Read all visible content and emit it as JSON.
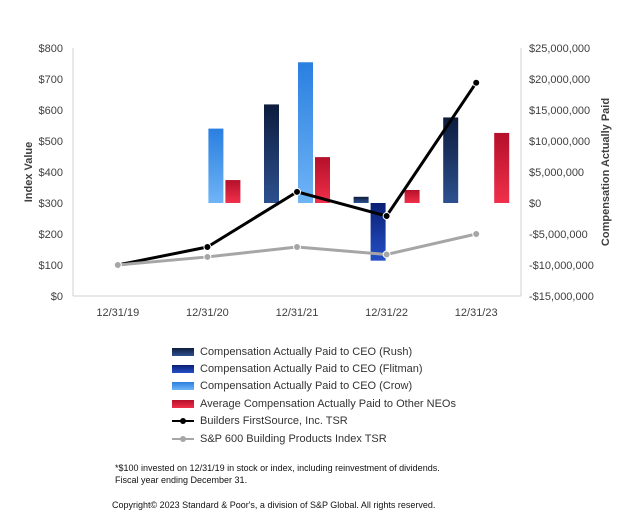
{
  "chart_data": {
    "type": "bar",
    "categories": [
      "12/31/19",
      "12/31/20",
      "12/31/21",
      "12/31/22",
      "12/31/23"
    ],
    "left_axis": {
      "title": "Index Value",
      "ylim": [
        0,
        800
      ],
      "ticks": [
        0,
        100,
        200,
        300,
        400,
        500,
        600,
        700,
        800
      ],
      "tick_labels": [
        "$0",
        "$100",
        "$200",
        "$300",
        "$400",
        "$500",
        "$600",
        "$700",
        "$800"
      ]
    },
    "right_axis": {
      "title": "Compensation Actually Paid",
      "ylim": [
        -15000000,
        25000000
      ],
      "ticks": [
        -15000000,
        -10000000,
        -5000000,
        0,
        5000000,
        10000000,
        15000000,
        20000000,
        25000000
      ],
      "tick_labels": [
        "-$15,000,000",
        "-$10,000,000",
        "-$5,000,000",
        "$0",
        "$5,000,000",
        "$10,000,000",
        "$15,000,000",
        "$20,000,000",
        "$25,000,000"
      ]
    },
    "bar_series": [
      {
        "name": "Compensation Actually Paid to CEO (Rush)",
        "color": "#1f3a6e",
        "values": [
          null,
          null,
          15900000,
          1000000,
          13800000
        ]
      },
      {
        "name": "Compensation Actually Paid to CEO (Flitman)",
        "color": "#13308f",
        "values": [
          null,
          null,
          null,
          -9300000,
          null
        ]
      },
      {
        "name": "Compensation Actually Paid to CEO (Crow)",
        "color": "#3f8fe8",
        "values": [
          null,
          12000000,
          22700000,
          null,
          null
        ]
      },
      {
        "name": "Average Compensation Actually Paid to Other NEOs",
        "color": "#d8182f",
        "values": [
          null,
          3700000,
          7400000,
          2100000,
          11300000
        ]
      }
    ],
    "line_series": [
      {
        "name": "Builders FirstSource, Inc. TSR",
        "color": "#000000",
        "values": [
          100,
          158,
          336,
          258,
          688
        ]
      },
      {
        "name": "S&P 600 Building Products Index TSR",
        "color": "#a6a6a6",
        "values": [
          100,
          126,
          158,
          134,
          200
        ]
      }
    ],
    "grid": false,
    "legend_position": "bottom"
  },
  "notes": [
    "*$100 invested on 12/31/19 in stock or index, including reinvestment of dividends.",
    "Fiscal year ending December 31."
  ],
  "copyright": "Copyright© 2023 Standard & Poor's, a division of S&P Global. All rights reserved."
}
